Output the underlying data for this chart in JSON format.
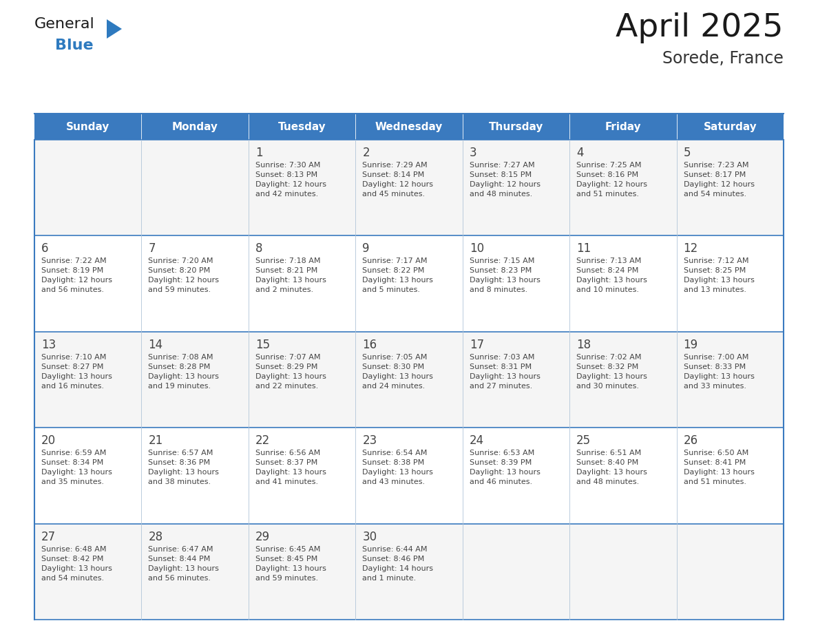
{
  "title": "April 2025",
  "subtitle": "Sorede, France",
  "days_of_week": [
    "Sunday",
    "Monday",
    "Tuesday",
    "Wednesday",
    "Thursday",
    "Friday",
    "Saturday"
  ],
  "header_bg_color": "#3a7abf",
  "header_text_color": "#ffffff",
  "cell_bg_color_even": "#f5f5f5",
  "cell_bg_color_odd": "#ffffff",
  "border_color": "#3a7abf",
  "grid_line_color": "#b0c4d8",
  "text_color": "#444444",
  "title_color": "#1a1a1a",
  "subtitle_color": "#333333",
  "calendar": [
    [
      {
        "day": null,
        "info": null
      },
      {
        "day": null,
        "info": null
      },
      {
        "day": 1,
        "info": "Sunrise: 7:30 AM\nSunset: 8:13 PM\nDaylight: 12 hours\nand 42 minutes."
      },
      {
        "day": 2,
        "info": "Sunrise: 7:29 AM\nSunset: 8:14 PM\nDaylight: 12 hours\nand 45 minutes."
      },
      {
        "day": 3,
        "info": "Sunrise: 7:27 AM\nSunset: 8:15 PM\nDaylight: 12 hours\nand 48 minutes."
      },
      {
        "day": 4,
        "info": "Sunrise: 7:25 AM\nSunset: 8:16 PM\nDaylight: 12 hours\nand 51 minutes."
      },
      {
        "day": 5,
        "info": "Sunrise: 7:23 AM\nSunset: 8:17 PM\nDaylight: 12 hours\nand 54 minutes."
      }
    ],
    [
      {
        "day": 6,
        "info": "Sunrise: 7:22 AM\nSunset: 8:19 PM\nDaylight: 12 hours\nand 56 minutes."
      },
      {
        "day": 7,
        "info": "Sunrise: 7:20 AM\nSunset: 8:20 PM\nDaylight: 12 hours\nand 59 minutes."
      },
      {
        "day": 8,
        "info": "Sunrise: 7:18 AM\nSunset: 8:21 PM\nDaylight: 13 hours\nand 2 minutes."
      },
      {
        "day": 9,
        "info": "Sunrise: 7:17 AM\nSunset: 8:22 PM\nDaylight: 13 hours\nand 5 minutes."
      },
      {
        "day": 10,
        "info": "Sunrise: 7:15 AM\nSunset: 8:23 PM\nDaylight: 13 hours\nand 8 minutes."
      },
      {
        "day": 11,
        "info": "Sunrise: 7:13 AM\nSunset: 8:24 PM\nDaylight: 13 hours\nand 10 minutes."
      },
      {
        "day": 12,
        "info": "Sunrise: 7:12 AM\nSunset: 8:25 PM\nDaylight: 13 hours\nand 13 minutes."
      }
    ],
    [
      {
        "day": 13,
        "info": "Sunrise: 7:10 AM\nSunset: 8:27 PM\nDaylight: 13 hours\nand 16 minutes."
      },
      {
        "day": 14,
        "info": "Sunrise: 7:08 AM\nSunset: 8:28 PM\nDaylight: 13 hours\nand 19 minutes."
      },
      {
        "day": 15,
        "info": "Sunrise: 7:07 AM\nSunset: 8:29 PM\nDaylight: 13 hours\nand 22 minutes."
      },
      {
        "day": 16,
        "info": "Sunrise: 7:05 AM\nSunset: 8:30 PM\nDaylight: 13 hours\nand 24 minutes."
      },
      {
        "day": 17,
        "info": "Sunrise: 7:03 AM\nSunset: 8:31 PM\nDaylight: 13 hours\nand 27 minutes."
      },
      {
        "day": 18,
        "info": "Sunrise: 7:02 AM\nSunset: 8:32 PM\nDaylight: 13 hours\nand 30 minutes."
      },
      {
        "day": 19,
        "info": "Sunrise: 7:00 AM\nSunset: 8:33 PM\nDaylight: 13 hours\nand 33 minutes."
      }
    ],
    [
      {
        "day": 20,
        "info": "Sunrise: 6:59 AM\nSunset: 8:34 PM\nDaylight: 13 hours\nand 35 minutes."
      },
      {
        "day": 21,
        "info": "Sunrise: 6:57 AM\nSunset: 8:36 PM\nDaylight: 13 hours\nand 38 minutes."
      },
      {
        "day": 22,
        "info": "Sunrise: 6:56 AM\nSunset: 8:37 PM\nDaylight: 13 hours\nand 41 minutes."
      },
      {
        "day": 23,
        "info": "Sunrise: 6:54 AM\nSunset: 8:38 PM\nDaylight: 13 hours\nand 43 minutes."
      },
      {
        "day": 24,
        "info": "Sunrise: 6:53 AM\nSunset: 8:39 PM\nDaylight: 13 hours\nand 46 minutes."
      },
      {
        "day": 25,
        "info": "Sunrise: 6:51 AM\nSunset: 8:40 PM\nDaylight: 13 hours\nand 48 minutes."
      },
      {
        "day": 26,
        "info": "Sunrise: 6:50 AM\nSunset: 8:41 PM\nDaylight: 13 hours\nand 51 minutes."
      }
    ],
    [
      {
        "day": 27,
        "info": "Sunrise: 6:48 AM\nSunset: 8:42 PM\nDaylight: 13 hours\nand 54 minutes."
      },
      {
        "day": 28,
        "info": "Sunrise: 6:47 AM\nSunset: 8:44 PM\nDaylight: 13 hours\nand 56 minutes."
      },
      {
        "day": 29,
        "info": "Sunrise: 6:45 AM\nSunset: 8:45 PM\nDaylight: 13 hours\nand 59 minutes."
      },
      {
        "day": 30,
        "info": "Sunrise: 6:44 AM\nSunset: 8:46 PM\nDaylight: 14 hours\nand 1 minute."
      },
      {
        "day": null,
        "info": null
      },
      {
        "day": null,
        "info": null
      },
      {
        "day": null,
        "info": null
      }
    ]
  ],
  "logo_text_general": "General",
  "logo_text_blue": "Blue",
  "logo_color_general": "#1a1a1a",
  "logo_color_blue": "#2e7abf",
  "logo_triangle_color": "#2e7abf"
}
